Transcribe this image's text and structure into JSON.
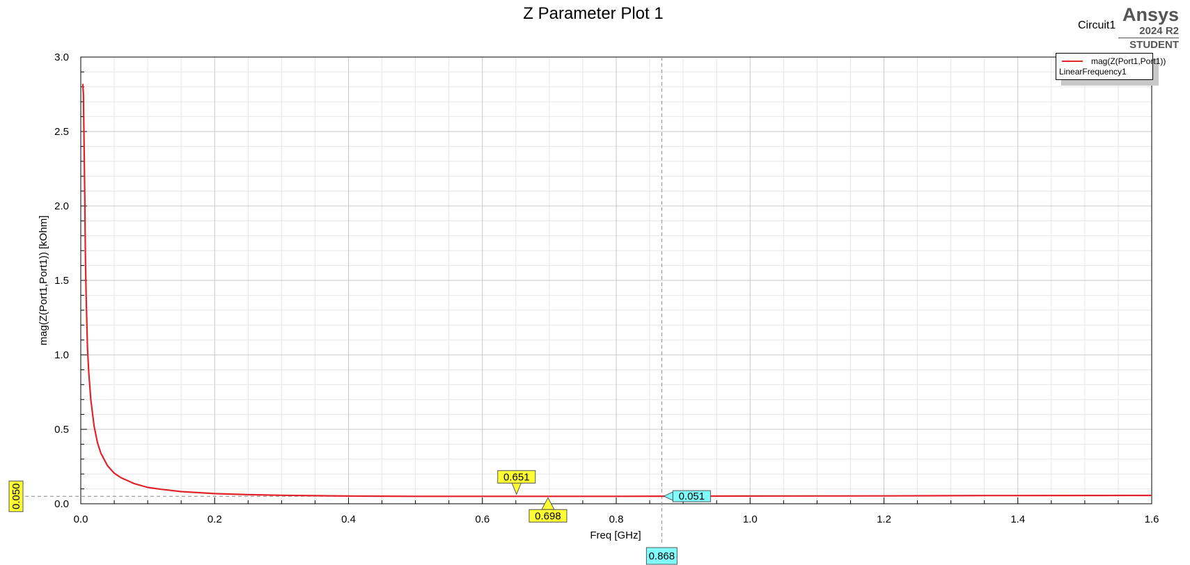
{
  "header": {
    "brand_name": "Ansys",
    "brand_version": "2024 R2",
    "brand_edition": "STUDENT",
    "design_name": "Circuit1"
  },
  "legend": {
    "trace_name": "mag(Z(Port1,Port1))",
    "setup_name": "LinearFrequency1"
  },
  "colors": {
    "trace": "#e0242a",
    "marker_yellow": "#ffff33",
    "marker_cyan": "#80ffff",
    "grid_major": "#c8c8c8",
    "grid_minor": "#e6e6e6"
  },
  "chart_data": {
    "type": "line",
    "title": "Z Parameter Plot 1",
    "xlabel": "Freq [GHz]",
    "ylabel": "mag(Z(Port1,Port1)) [kOhm]",
    "xlim": [
      0.0,
      1.6
    ],
    "ylim": [
      0.0,
      3.0
    ],
    "xticks": [
      "0.0",
      "0.2",
      "0.4",
      "0.6",
      "0.8",
      "1.0",
      "1.2",
      "1.4",
      "1.6"
    ],
    "yticks": [
      "0.0",
      "0.5",
      "1.0",
      "1.5",
      "2.0",
      "2.5",
      "3.0"
    ],
    "grid": true,
    "legend_position": "top-right",
    "series": [
      {
        "name": "mag(Z(Port1,Port1))",
        "x": [
          0.003,
          0.004,
          0.005,
          0.006,
          0.007,
          0.008,
          0.01,
          0.012,
          0.015,
          0.02,
          0.025,
          0.03,
          0.04,
          0.05,
          0.06,
          0.08,
          0.1,
          0.12,
          0.15,
          0.2,
          0.25,
          0.3,
          0.35,
          0.4,
          0.45,
          0.5,
          0.6,
          0.7,
          0.8,
          0.87,
          0.9,
          1.0,
          1.2,
          1.36,
          1.4,
          1.6
        ],
        "y": [
          2.82,
          2.75,
          2.4,
          2.05,
          1.65,
          1.4,
          1.05,
          0.88,
          0.7,
          0.52,
          0.41,
          0.34,
          0.255,
          0.205,
          0.175,
          0.135,
          0.11,
          0.097,
          0.082,
          0.068,
          0.061,
          0.057,
          0.054,
          0.052,
          0.051,
          0.05,
          0.05,
          0.05,
          0.05,
          0.051,
          0.051,
          0.052,
          0.053,
          0.055,
          0.055,
          0.056
        ]
      }
    ],
    "markers": [
      {
        "label": "0.651",
        "x": 0.651,
        "y": 0.05,
        "style": "yellow",
        "pointer": "down"
      },
      {
        "label": "0.698",
        "x": 0.698,
        "y": 0.05,
        "style": "yellow",
        "pointer": "up"
      },
      {
        "label": "0.051",
        "x": 0.868,
        "y": 0.051,
        "style": "cyan",
        "pointer": "left"
      }
    ],
    "x_cursor": {
      "label": "0.868",
      "x": 0.868
    },
    "y_cursor": {
      "label": "0.050",
      "y": 0.05
    }
  }
}
